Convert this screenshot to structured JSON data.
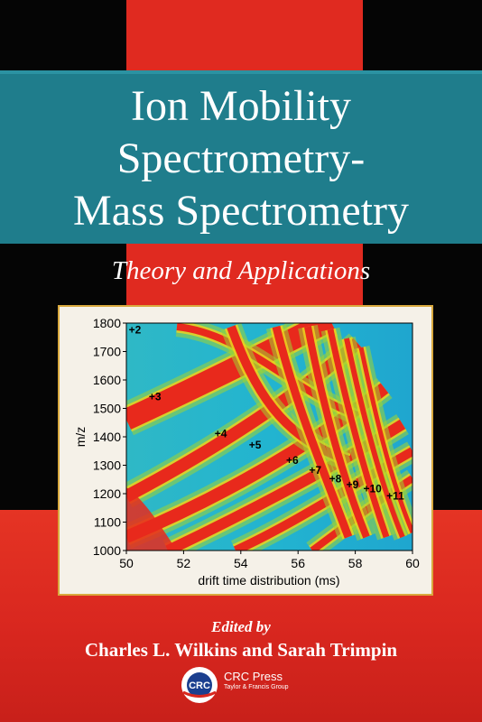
{
  "cover": {
    "title_lines": [
      "Ion Mobility",
      "Spectrometry-",
      "Mass Spectrometry"
    ],
    "subtitle": "Theory and Applications",
    "edited_by": "Edited by",
    "authors": "Charles L. Wilkins and Sarah Trimpin",
    "publisher": {
      "logo_text": "CRC",
      "name": "CRC Press",
      "group": "Taylor & Francis Group"
    },
    "colors": {
      "red": "#e02a20",
      "black": "#050505",
      "teal": "#1f7d8c",
      "figure_border": "#d9a93e",
      "heatmap_bg": "#27b9cf",
      "heatmap_mid": "#9fd433",
      "heatmap_band": "#e8291c"
    }
  },
  "chart_data": {
    "type": "heatmap",
    "xlabel": "drift time distribution (ms)",
    "ylabel": "m/z",
    "xlim": [
      50,
      60
    ],
    "ylim": [
      1000,
      1800
    ],
    "x_ticks": [
      50,
      52,
      54,
      56,
      58,
      60
    ],
    "y_ticks": [
      1000,
      1100,
      1200,
      1300,
      1400,
      1500,
      1600,
      1700,
      1800
    ],
    "annotations": [
      {
        "text": "+2",
        "x": 50.3,
        "y": 1780
      },
      {
        "text": "+3",
        "x": 51.0,
        "y": 1545
      },
      {
        "text": "+4",
        "x": 53.3,
        "y": 1415
      },
      {
        "text": "+5",
        "x": 54.5,
        "y": 1375
      },
      {
        "text": "+6",
        "x": 55.8,
        "y": 1320
      },
      {
        "text": "+7",
        "x": 56.6,
        "y": 1285
      },
      {
        "text": "+8",
        "x": 57.3,
        "y": 1255
      },
      {
        "text": "+9",
        "x": 57.9,
        "y": 1235
      },
      {
        "text": "+10",
        "x": 58.6,
        "y": 1220
      },
      {
        "text": "+11",
        "x": 59.4,
        "y": 1195
      }
    ]
  }
}
